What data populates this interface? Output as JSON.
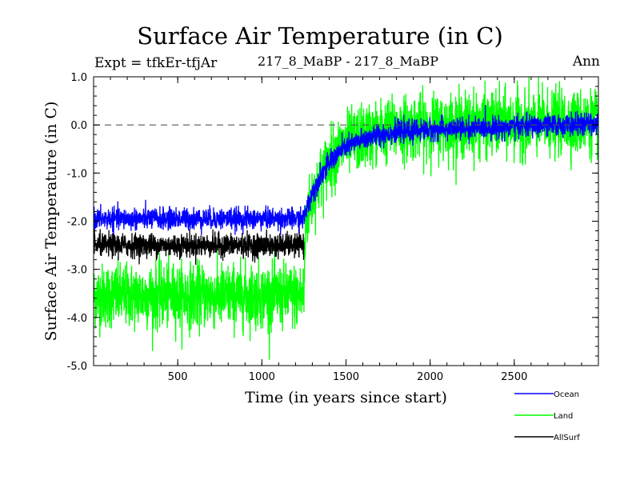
{
  "chart_data": {
    "type": "line",
    "title": "Surface Air Temperature (in C)",
    "subtitle_left": "Expt = tfkEr-tfjAr",
    "subtitle_center": "217_8_MaBP - 217_8_MaBP",
    "subtitle_right": "Ann",
    "xlabel": "Time (in years since start)",
    "ylabel": "Surface Air Temperature (in C)",
    "xlim": [
      0,
      3000
    ],
    "ylim": [
      -5.0,
      1.0
    ],
    "xticks": [
      500,
      1000,
      1500,
      2000,
      2500
    ],
    "yticks": [
      "-5.0",
      "-4.0",
      "-3.0",
      "-2.0",
      "-1.0",
      "0.0",
      "1.0"
    ],
    "reference_line": {
      "y": 0.0,
      "style": "dashed"
    },
    "legend_position": "bottom-right, below plot",
    "series": [
      {
        "name": "Ocean",
        "color": "#0000ff",
        "noise": 0.11,
        "x": [
          0,
          200,
          400,
          600,
          800,
          1000,
          1250,
          1260,
          1300,
          1350,
          1400,
          1450,
          1500,
          1600,
          1700,
          1800,
          1900,
          2000,
          2200,
          2400,
          2600,
          2800,
          3000
        ],
        "y": [
          -1.95,
          -1.95,
          -1.95,
          -1.95,
          -1.95,
          -1.95,
          -1.95,
          -1.8,
          -1.4,
          -1.05,
          -0.8,
          -0.6,
          -0.45,
          -0.3,
          -0.2,
          -0.15,
          -0.12,
          -0.1,
          -0.07,
          -0.05,
          -0.02,
          0.0,
          0.02
        ]
      },
      {
        "name": "Land",
        "color": "#00ff00",
        "noise": 0.33,
        "x": [
          0,
          200,
          400,
          600,
          800,
          1000,
          1250,
          1260,
          1300,
          1350,
          1400,
          1450,
          1500,
          1600,
          1700,
          1800,
          1900,
          2000,
          2200,
          2400,
          2600,
          2800,
          3000
        ],
        "y": [
          -3.55,
          -3.55,
          -3.55,
          -3.55,
          -3.55,
          -3.55,
          -3.55,
          -2.0,
          -1.5,
          -1.1,
          -0.75,
          -0.55,
          -0.4,
          -0.25,
          -0.15,
          -0.08,
          -0.05,
          -0.03,
          0.0,
          0.02,
          0.03,
          0.05,
          0.05
        ]
      },
      {
        "name": "AllSurf",
        "color": "#000000",
        "noise": 0.12,
        "x": [
          0,
          200,
          400,
          600,
          800,
          1000,
          1250
        ],
        "y": [
          -2.5,
          -2.5,
          -2.5,
          -2.5,
          -2.5,
          -2.5,
          -2.5
        ]
      }
    ]
  }
}
